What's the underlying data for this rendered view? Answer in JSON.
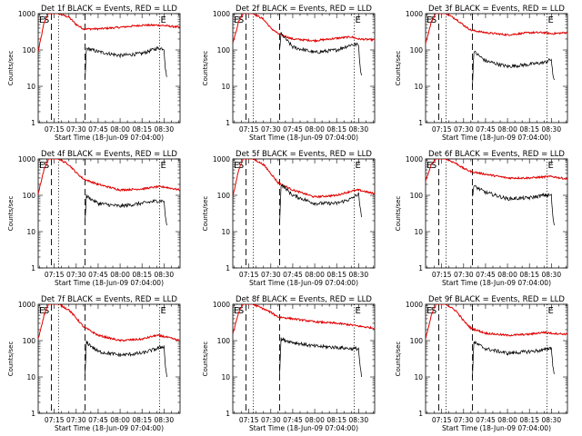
{
  "chart_data": {
    "type": "line",
    "yscale": "log",
    "ylim": [
      1,
      1000
    ],
    "xlim": [
      "07:04",
      "08:41"
    ],
    "xticks": [
      "07:15",
      "07:30",
      "07:45",
      "08:00",
      "08:15",
      "08:30"
    ],
    "yticks": [
      "1",
      "10",
      "100",
      "1000"
    ],
    "xlabel": "Start Time (18-Jun-09 07:04:00)",
    "ylabel": "Counts/sec",
    "vlines": {
      "dashed": [
        "07:13",
        "07:36"
      ],
      "dotted": [
        "07:18",
        "08:27"
      ]
    },
    "markers": [
      {
        "label": "E",
        "x": "07:04"
      },
      {
        "label": "S",
        "x": "07:07"
      },
      {
        "label": "E",
        "x": "08:27"
      }
    ],
    "colors": {
      "events": "#000000",
      "lld": "#e00000"
    },
    "panels": [
      {
        "title": "Det 1f BLACK = Events, RED = LLD",
        "series": [
          {
            "x": [
              "07:04",
              "07:08",
              "07:11",
              "07:14",
              "07:18",
              "07:25",
              "07:30",
              "07:35",
              "07:45",
              "08:00",
              "08:15",
              "08:25",
              "08:30",
              "08:41"
            ],
            "y": [
              90,
              550,
              1000,
              1000,
              1000,
              800,
              500,
              380,
              380,
              420,
              480,
              480,
              470,
              420
            ]
          },
          {
            "x": [
              "07:36",
              "07:37",
              "07:45",
              "08:00",
              "08:15",
              "08:25",
              "08:30",
              "08:31",
              "08:32"
            ],
            "y": [
              15,
              110,
              90,
              70,
              80,
              110,
              110,
              30,
              18
            ]
          }
        ]
      },
      {
        "title": "Det 2f BLACK = Events, RED = LLD",
        "series": [
          {
            "x": [
              "07:04",
              "07:08",
              "07:11",
              "07:14",
              "07:18",
              "07:25",
              "07:30",
              "07:35",
              "07:45",
              "08:00",
              "08:15",
              "08:25",
              "08:30",
              "08:41"
            ],
            "y": [
              150,
              600,
              1000,
              1000,
              1000,
              700,
              400,
              280,
              200,
              180,
              210,
              230,
              200,
              190
            ]
          },
          {
            "x": [
              "07:36",
              "07:37",
              "07:45",
              "08:00",
              "08:15",
              "08:25",
              "08:30",
              "08:31",
              "08:32"
            ],
            "y": [
              100,
              280,
              120,
              85,
              100,
              140,
              140,
              35,
              20
            ]
          }
        ]
      },
      {
        "title": "Det 3f BLACK = Events, RED = LLD",
        "series": [
          {
            "x": [
              "07:04",
              "07:08",
              "07:11",
              "07:14",
              "07:18",
              "07:25",
              "07:30",
              "07:35",
              "07:45",
              "08:00",
              "08:15",
              "08:25",
              "08:30",
              "08:41"
            ],
            "y": [
              150,
              600,
              1000,
              1000,
              1000,
              700,
              480,
              350,
              300,
              260,
              300,
              300,
              280,
              300
            ]
          },
          {
            "x": [
              "07:36",
              "07:37",
              "07:45",
              "08:00",
              "08:15",
              "08:25",
              "08:30",
              "08:31",
              "08:32"
            ],
            "y": [
              10,
              90,
              50,
              35,
              40,
              45,
              55,
              20,
              15
            ]
          }
        ]
      },
      {
        "title": "Det 4f BLACK = Events, RED = LLD",
        "series": [
          {
            "x": [
              "07:04",
              "07:08",
              "07:11",
              "07:14",
              "07:18",
              "07:25",
              "07:30",
              "07:35",
              "07:45",
              "08:00",
              "08:15",
              "08:25",
              "08:30",
              "08:41"
            ],
            "y": [
              110,
              500,
              1000,
              1000,
              1000,
              700,
              420,
              280,
              200,
              140,
              150,
              170,
              170,
              140
            ]
          },
          {
            "x": [
              "07:36",
              "07:37",
              "07:45",
              "08:00",
              "08:15",
              "08:25",
              "08:30",
              "08:31",
              "08:32"
            ],
            "y": [
              20,
              95,
              60,
              50,
              60,
              70,
              70,
              25,
              15
            ]
          }
        ]
      },
      {
        "title": "Det 5f BLACK = Events, RED = LLD",
        "series": [
          {
            "x": [
              "07:04",
              "07:08",
              "07:11",
              "07:14",
              "07:18",
              "07:25",
              "07:30",
              "07:35",
              "07:45",
              "08:00",
              "08:15",
              "08:25",
              "08:30",
              "08:41"
            ],
            "y": [
              90,
              500,
              1000,
              1000,
              1000,
              700,
              400,
              220,
              140,
              90,
              100,
              130,
              140,
              110
            ]
          },
          {
            "x": [
              "07:36",
              "07:37",
              "07:45",
              "08:00",
              "08:15",
              "08:25",
              "08:30",
              "08:31",
              "08:32"
            ],
            "y": [
              15,
              200,
              100,
              60,
              60,
              80,
              110,
              45,
              25
            ]
          }
        ]
      },
      {
        "title": "Det 6f BLACK = Events, RED = LLD",
        "series": [
          {
            "x": [
              "07:04",
              "07:08",
              "07:11",
              "07:14",
              "07:18",
              "07:25",
              "07:30",
              "07:35",
              "07:45",
              "08:00",
              "08:15",
              "08:25",
              "08:30",
              "08:41"
            ],
            "y": [
              250,
              700,
              1000,
              1000,
              1000,
              750,
              550,
              450,
              380,
              300,
              300,
              320,
              330,
              280
            ]
          },
          {
            "x": [
              "07:36",
              "07:37",
              "07:45",
              "08:00",
              "08:15",
              "08:25",
              "08:30",
              "08:31",
              "08:32"
            ],
            "y": [
              90,
              180,
              120,
              80,
              85,
              100,
              100,
              25,
              15
            ]
          }
        ]
      },
      {
        "title": "Det 7f BLACK = Events, RED = LLD",
        "series": [
          {
            "x": [
              "07:04",
              "07:08",
              "07:11",
              "07:14",
              "07:18",
              "07:25",
              "07:30",
              "07:35",
              "07:45",
              "08:00",
              "08:15",
              "08:25",
              "08:30",
              "08:41"
            ],
            "y": [
              110,
              500,
              1000,
              1000,
              1000,
              700,
              420,
              240,
              140,
              100,
              110,
              140,
              130,
              100
            ]
          },
          {
            "x": [
              "07:36",
              "07:37",
              "07:45",
              "08:00",
              "08:15",
              "08:25",
              "08:30",
              "08:31",
              "08:32"
            ],
            "y": [
              10,
              90,
              50,
              40,
              45,
              60,
              70,
              20,
              10
            ]
          }
        ]
      },
      {
        "title": "Det 8f BLACK = Events, RED = LLD",
        "series": [
          {
            "x": [
              "07:04",
              "07:08",
              "07:11",
              "07:14",
              "07:18",
              "07:25",
              "07:30",
              "07:35",
              "07:45",
              "08:00",
              "08:15",
              "08:25",
              "08:30",
              "08:41"
            ],
            "y": [
              150,
              600,
              1000,
              1000,
              1000,
              750,
              600,
              450,
              400,
              330,
              300,
              270,
              250,
              220
            ]
          },
          {
            "x": [
              "07:36",
              "07:37",
              "07:45",
              "08:00",
              "08:15",
              "08:25",
              "08:30",
              "08:31",
              "08:32"
            ],
            "y": [
              12,
              110,
              90,
              70,
              65,
              60,
              60,
              20,
              10
            ]
          }
        ]
      },
      {
        "title": "Det 9f BLACK = Events, RED = LLD",
        "series": [
          {
            "x": [
              "07:04",
              "07:08",
              "07:11",
              "07:14",
              "07:18",
              "07:25",
              "07:30",
              "07:35",
              "07:45",
              "08:00",
              "08:15",
              "08:25",
              "08:30",
              "08:41"
            ],
            "y": [
              110,
              500,
              1000,
              1000,
              1000,
              650,
              350,
              220,
              160,
              140,
              150,
              170,
              160,
              150
            ]
          },
          {
            "x": [
              "07:36",
              "07:37",
              "07:45",
              "08:00",
              "08:15",
              "08:25",
              "08:30",
              "08:31",
              "08:32"
            ],
            "y": [
              10,
              90,
              60,
              45,
              50,
              55,
              65,
              20,
              12
            ]
          }
        ]
      }
    ]
  }
}
